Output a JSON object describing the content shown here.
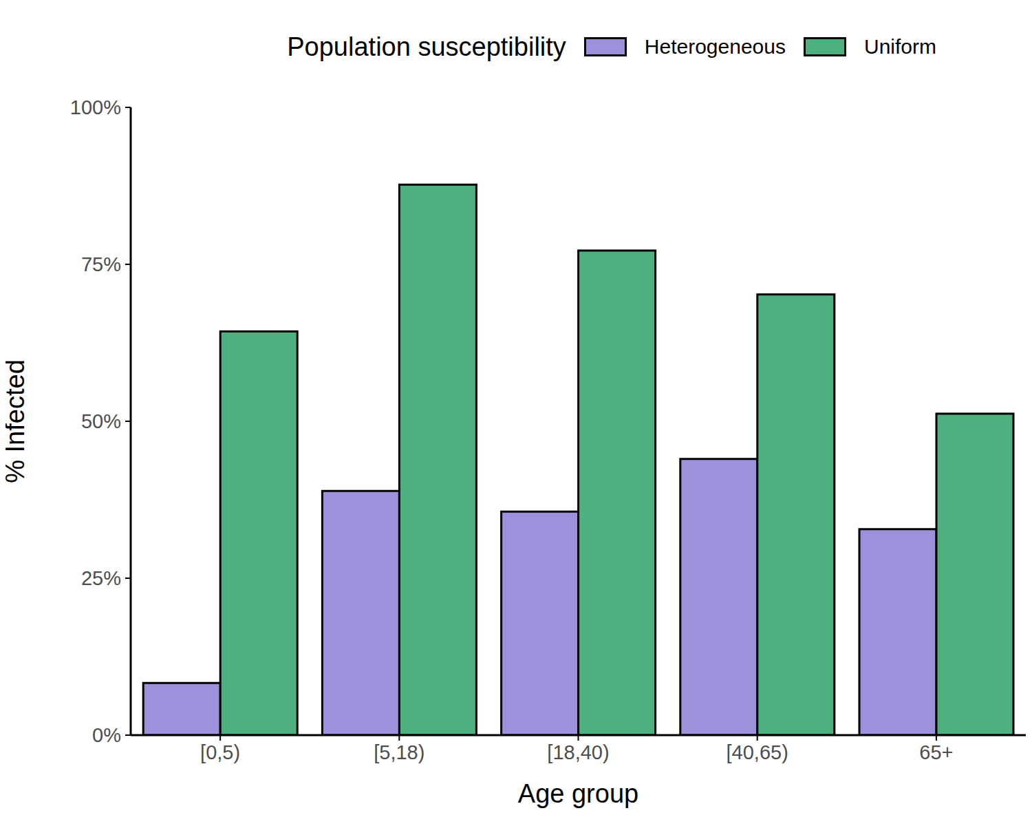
{
  "chart_data": {
    "type": "bar",
    "x_label": "Age group",
    "y_label": "% Infected",
    "legend_title": "Population susceptibility",
    "legend": "top",
    "grid": false,
    "categories": [
      "[0,5)",
      "[5,18)",
      "[18,40)",
      "[40,65)",
      "65+"
    ],
    "series": [
      {
        "name": "Heterogeneous",
        "color": "#9e91db",
        "values": [
          8.3,
          38.9,
          35.6,
          44.0,
          32.8
        ]
      },
      {
        "name": "Uniform",
        "color": "#4fb07f",
        "values": [
          64.3,
          87.7,
          77.2,
          70.2,
          51.2
        ]
      }
    ],
    "ylim": [
      0,
      100
    ],
    "yticks": [
      {
        "value": 0,
        "label": "0%"
      },
      {
        "value": 25,
        "label": "25%"
      },
      {
        "value": 50,
        "label": "50%"
      },
      {
        "value": 75,
        "label": "75%"
      },
      {
        "value": 100,
        "label": "100%"
      }
    ]
  }
}
